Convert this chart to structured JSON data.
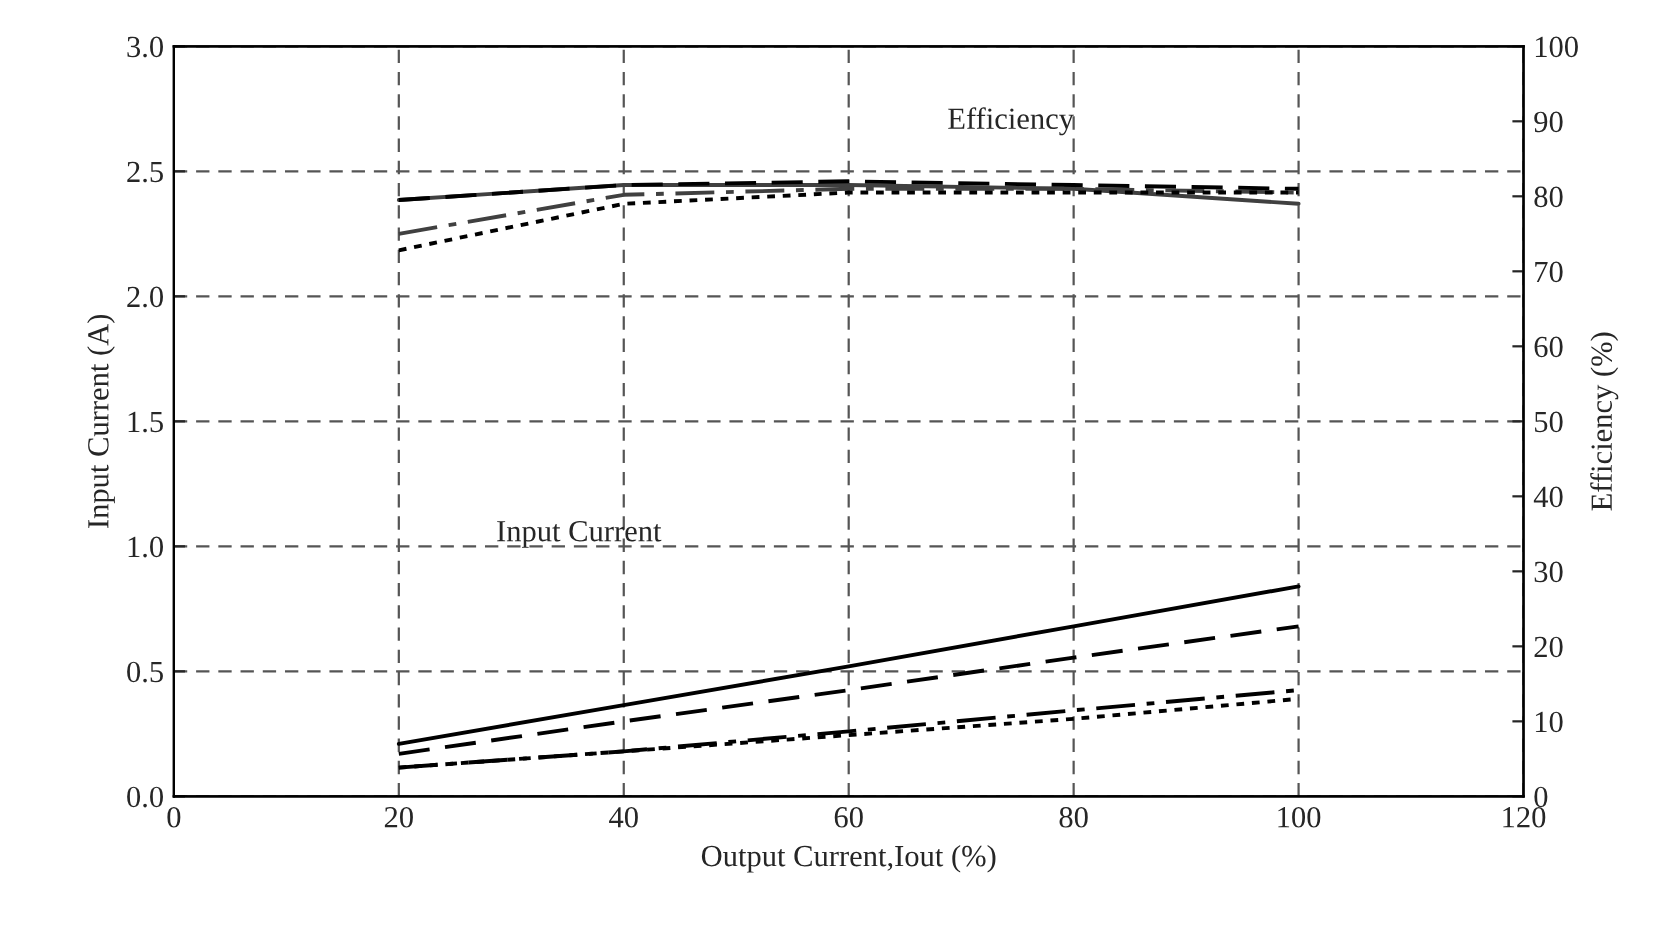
{
  "chart_data": {
    "type": "line",
    "xlabel": "Output Current,Iout (%)",
    "ylabel": "Input Current (A)",
    "y2label": "Efficiency (%)",
    "x": [
      20,
      40,
      60,
      80,
      100
    ],
    "series": [
      {
        "color": "#000000",
        "line_style": "solid",
        "values": [
          0.21,
          0.365,
          0.52,
          0.68,
          0.84
        ]
      },
      {
        "color": "#000000",
        "line_style": "dashed",
        "values": [
          0.17,
          0.3,
          0.425,
          0.555,
          0.68
        ]
      },
      {
        "color": "#000000",
        "line_style": "dashdot",
        "values": [
          0.115,
          0.18,
          0.26,
          0.344,
          0.425
        ]
      },
      {
        "color": "#000000",
        "line_style": "dotted",
        "values": [
          0.115,
          0.18,
          0.245,
          0.31,
          0.39
        ]
      },
      {
        "color": "#404040",
        "line_style": "solid",
        "axis": "y2",
        "values": [
          79.5,
          81.5,
          81.5,
          81,
          79
        ]
      },
      {
        "color": "#000000",
        "line_style": "dashed",
        "axis": "y2",
        "values": [
          79.5,
          81.5,
          82,
          81.5,
          81
        ]
      },
      {
        "color": "#404040",
        "line_style": "dashdot",
        "axis": "y2",
        "values": [
          75,
          80.2,
          81,
          81,
          80.5
        ]
      },
      {
        "color": "#000000",
        "line_style": "dotted",
        "axis": "y2",
        "values": [
          72.8,
          79,
          80.5,
          80.5,
          80.5
        ]
      }
    ],
    "annotations": [
      "Efficiency",
      "Input Current"
    ],
    "xlim": [
      0,
      120
    ],
    "xticks": [
      0,
      20,
      40,
      60,
      80,
      100,
      120
    ],
    "ylim": [
      0,
      3
    ],
    "yticks": [
      {
        "value": 0,
        "label": "0.0"
      },
      {
        "value": 0.5,
        "label": "0.5"
      },
      {
        "value": 1,
        "label": "1.0"
      },
      {
        "value": 1.5,
        "label": "1.5"
      },
      {
        "value": 2,
        "label": "2.0"
      },
      {
        "value": 2.5,
        "label": "2.5"
      },
      {
        "value": 3,
        "label": "3.0"
      }
    ],
    "y2lim": [
      0,
      100
    ],
    "y2ticks": [
      0,
      10,
      20,
      30,
      40,
      50,
      60,
      70,
      80,
      90,
      100
    ],
    "grid": true,
    "legend": false,
    "marker": "none"
  }
}
